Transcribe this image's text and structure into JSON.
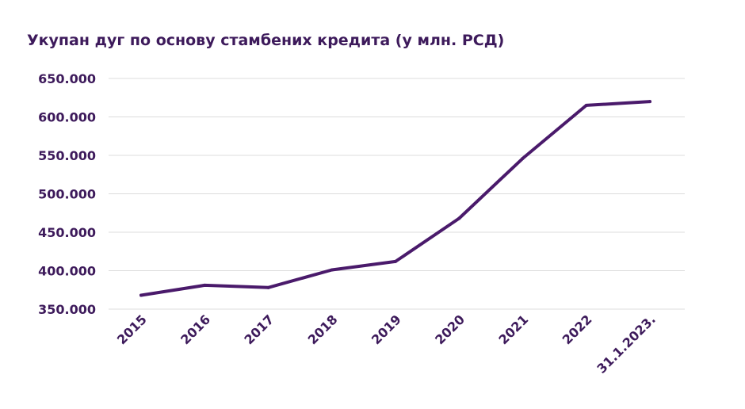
{
  "chart_data": {
    "type": "line",
    "title": "Укупан дуг по основу стамбених кредита (у млн. РСД)",
    "xlabel": "",
    "ylabel": "",
    "categories": [
      "2015",
      "2016",
      "2017",
      "2018",
      "2019",
      "2020",
      "2021",
      "2022",
      "31.1.2023."
    ],
    "series": [
      {
        "values": [
          368000,
          381000,
          378000,
          401000,
          412000,
          468000,
          546000,
          615000,
          620000
        ]
      }
    ],
    "ylim": [
      350000,
      650000
    ],
    "yticks": [
      650000,
      600000,
      550000,
      500000,
      450000,
      400000,
      350000
    ],
    "ytick_labels": [
      "650.000",
      "600.000",
      "550.000",
      "500.000",
      "450.000",
      "400.000",
      "350.000"
    ],
    "grid": true,
    "legend": "none",
    "colors": {
      "line": "#4a1a6b",
      "text": "#3d1a5b",
      "grid": "#dcdcdc"
    }
  }
}
